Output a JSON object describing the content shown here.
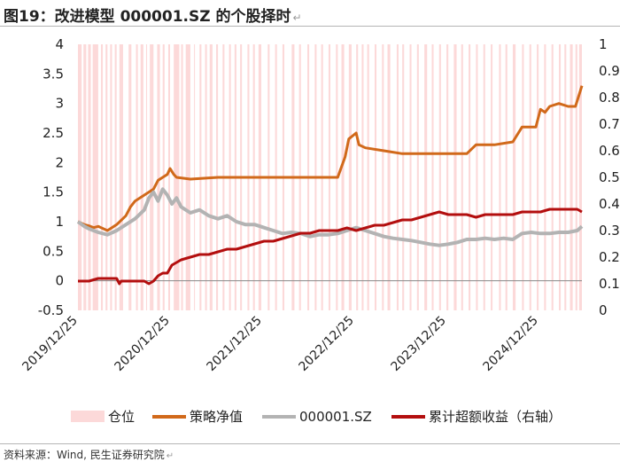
{
  "title": "图19：改进模型 000001.SZ 的个股择时",
  "source": "资料来源：Wind, 民生证券研究院",
  "chart_data": {
    "type": "line",
    "x_labels": [
      "2019/12/25",
      "2020/12/25",
      "2021/12/25",
      "2022/12/25",
      "2023/12/25",
      "2024/12/25"
    ],
    "y_left": {
      "ylim": [
        -0.5,
        4
      ],
      "ticks": [
        "4",
        "3.5",
        "3",
        "2.5",
        "2",
        "1.5",
        "1",
        "0.5",
        "0",
        "-0.5"
      ]
    },
    "y_right": {
      "ylim": [
        0,
        1
      ],
      "ticks": [
        "1",
        "0.9",
        "0.8",
        "0.7",
        "0.6",
        "0.5",
        "0.4",
        "0.3",
        "0.2",
        "0.1",
        "0"
      ]
    },
    "x_range": [
      2019.98,
      2025.45
    ],
    "legend": [
      "仓位",
      "策略净值",
      "000001.SZ",
      "累计超额收益（右轴）"
    ],
    "colors": {
      "position": "#fcd9d9",
      "strategy": "#d1691a",
      "stock": "#b3b3b3",
      "excess": "#b30e0e"
    },
    "position_periods": [
      [
        2019.98,
        2020.02
      ],
      [
        2020.04,
        2020.07
      ],
      [
        2020.09,
        2020.12
      ],
      [
        2020.14,
        2020.2
      ],
      [
        2020.23,
        2020.25
      ],
      [
        2020.28,
        2020.3
      ],
      [
        2020.33,
        2020.35
      ],
      [
        2020.38,
        2020.4
      ],
      [
        2020.43,
        2020.47
      ],
      [
        2020.53,
        2020.56
      ],
      [
        2020.61,
        2020.63
      ],
      [
        2020.66,
        2020.69
      ],
      [
        2020.72,
        2020.73
      ],
      [
        2020.76,
        2020.8
      ],
      [
        2020.84,
        2020.87
      ],
      [
        2020.9,
        2020.92
      ],
      [
        2020.96,
        2020.98
      ],
      [
        2021.02,
        2021.08
      ],
      [
        2021.1,
        2021.12
      ],
      [
        2021.15,
        2021.2
      ],
      [
        2021.24,
        2021.25
      ],
      [
        2021.3,
        2021.32
      ],
      [
        2021.36,
        2021.38
      ],
      [
        2021.41,
        2021.44
      ],
      [
        2021.48,
        2021.5
      ],
      [
        2021.55,
        2021.57
      ],
      [
        2021.62,
        2021.64
      ],
      [
        2021.68,
        2021.7
      ],
      [
        2021.74,
        2021.76
      ],
      [
        2021.82,
        2021.84
      ],
      [
        2021.88,
        2021.9
      ],
      [
        2021.94,
        2021.97
      ],
      [
        2022.04,
        2022.06
      ],
      [
        2022.12,
        2022.14
      ],
      [
        2022.2,
        2022.22
      ],
      [
        2022.3,
        2022.33
      ],
      [
        2022.38,
        2022.4
      ],
      [
        2022.47,
        2022.49
      ],
      [
        2022.55,
        2022.57
      ],
      [
        2022.62,
        2022.64
      ],
      [
        2022.7,
        2022.72
      ],
      [
        2022.78,
        2022.8
      ],
      [
        2022.84,
        2022.87
      ],
      [
        2022.92,
        2022.95
      ],
      [
        2023.0,
        2023.02
      ],
      [
        2023.06,
        2023.08
      ],
      [
        2023.12,
        2023.14
      ],
      [
        2023.2,
        2023.22
      ],
      [
        2023.28,
        2023.3
      ],
      [
        2023.34,
        2023.37
      ],
      [
        2023.44,
        2023.46
      ],
      [
        2023.5,
        2023.52
      ],
      [
        2023.58,
        2023.6
      ],
      [
        2023.66,
        2023.68
      ],
      [
        2023.74,
        2023.77
      ],
      [
        2023.82,
        2023.84
      ],
      [
        2023.9,
        2023.92
      ],
      [
        2023.98,
        2024.0
      ],
      [
        2024.06,
        2024.09
      ],
      [
        2024.14,
        2024.16
      ],
      [
        2024.22,
        2024.24
      ],
      [
        2024.3,
        2024.32
      ],
      [
        2024.38,
        2024.4
      ],
      [
        2024.46,
        2024.48
      ],
      [
        2024.55,
        2024.57
      ],
      [
        2024.62,
        2024.64
      ],
      [
        2024.7,
        2024.73
      ],
      [
        2024.8,
        2024.82
      ],
      [
        2024.88,
        2024.9
      ],
      [
        2024.96,
        2024.98
      ],
      [
        2025.04,
        2025.06
      ],
      [
        2025.12,
        2025.14
      ],
      [
        2025.2,
        2025.22
      ],
      [
        2025.26,
        2025.28
      ],
      [
        2025.32,
        2025.35
      ],
      [
        2025.38,
        2025.4
      ],
      [
        2025.42,
        2025.45
      ]
    ],
    "series": [
      {
        "name": "策略净值",
        "x": [
          2019.98,
          2020.05,
          2020.1,
          2020.15,
          2020.2,
          2020.3,
          2020.4,
          2020.5,
          2020.55,
          2020.6,
          2020.7,
          2020.8,
          2020.85,
          2020.9,
          2020.95,
          2020.98,
          2021.02,
          2021.05,
          2021.2,
          2021.5,
          2021.8,
          2022.0,
          2022.3,
          2022.6,
          2022.8,
          2022.88,
          2022.92,
          2023.0,
          2023.03,
          2023.1,
          2023.3,
          2023.5,
          2023.7,
          2023.9,
          2024.2,
          2024.3,
          2024.5,
          2024.7,
          2024.8,
          2024.95,
          2025.0,
          2025.05,
          2025.1,
          2025.2,
          2025.3,
          2025.38,
          2025.42,
          2025.45
        ],
        "y": [
          1.0,
          0.95,
          0.93,
          0.9,
          0.92,
          0.85,
          0.95,
          1.1,
          1.25,
          1.35,
          1.45,
          1.55,
          1.7,
          1.75,
          1.8,
          1.9,
          1.8,
          1.75,
          1.72,
          1.75,
          1.75,
          1.75,
          1.75,
          1.75,
          1.75,
          2.1,
          2.4,
          2.5,
          2.3,
          2.25,
          2.2,
          2.15,
          2.15,
          2.15,
          2.15,
          2.3,
          2.3,
          2.35,
          2.6,
          2.6,
          2.9,
          2.85,
          2.95,
          3.0,
          2.95,
          2.95,
          3.15,
          3.3
        ]
      },
      {
        "name": "000001.SZ",
        "x": [
          2019.98,
          2020.05,
          2020.1,
          2020.2,
          2020.3,
          2020.4,
          2020.5,
          2020.6,
          2020.7,
          2020.75,
          2020.8,
          2020.85,
          2020.9,
          2020.95,
          2021.0,
          2021.05,
          2021.1,
          2021.2,
          2021.3,
          2021.4,
          2021.5,
          2021.6,
          2021.7,
          2021.8,
          2021.9,
          2022.0,
          2022.1,
          2022.2,
          2022.3,
          2022.4,
          2022.5,
          2022.6,
          2022.7,
          2022.8,
          2022.9,
          2023.0,
          2023.1,
          2023.2,
          2023.3,
          2023.4,
          2023.5,
          2023.6,
          2023.7,
          2023.8,
          2023.9,
          2024.0,
          2024.1,
          2024.2,
          2024.3,
          2024.4,
          2024.5,
          2024.6,
          2024.7,
          2024.8,
          2024.9,
          2025.0,
          2025.1,
          2025.2,
          2025.3,
          2025.4,
          2025.45
        ],
        "y": [
          1.0,
          0.92,
          0.88,
          0.82,
          0.78,
          0.85,
          0.95,
          1.05,
          1.2,
          1.4,
          1.5,
          1.35,
          1.55,
          1.45,
          1.3,
          1.4,
          1.25,
          1.15,
          1.2,
          1.1,
          1.05,
          1.1,
          1.0,
          0.95,
          0.95,
          0.9,
          0.85,
          0.8,
          0.82,
          0.8,
          0.75,
          0.78,
          0.78,
          0.8,
          0.85,
          0.9,
          0.85,
          0.8,
          0.75,
          0.72,
          0.7,
          0.68,
          0.65,
          0.62,
          0.6,
          0.62,
          0.65,
          0.7,
          0.7,
          0.72,
          0.7,
          0.72,
          0.7,
          0.8,
          0.82,
          0.8,
          0.8,
          0.82,
          0.82,
          0.85,
          0.92
        ]
      },
      {
        "name": "累计超额收益（右轴）",
        "x": [
          2019.98,
          2020.1,
          2020.2,
          2020.3,
          2020.4,
          2020.43,
          2020.45,
          2020.55,
          2020.6,
          2020.7,
          2020.75,
          2020.8,
          2020.85,
          2020.9,
          2020.95,
          2021.0,
          2021.1,
          2021.2,
          2021.3,
          2021.4,
          2021.5,
          2021.6,
          2021.7,
          2021.8,
          2021.9,
          2022.0,
          2022.1,
          2022.2,
          2022.3,
          2022.4,
          2022.5,
          2022.6,
          2022.7,
          2022.8,
          2022.9,
          2023.0,
          2023.1,
          2023.2,
          2023.3,
          2023.4,
          2023.5,
          2023.6,
          2023.7,
          2023.8,
          2023.9,
          2024.0,
          2024.1,
          2024.2,
          2024.3,
          2024.4,
          2024.5,
          2024.6,
          2024.7,
          2024.8,
          2024.9,
          2025.0,
          2025.1,
          2025.2,
          2025.3,
          2025.4,
          2025.45
        ],
        "y": [
          0.11,
          0.11,
          0.12,
          0.12,
          0.12,
          0.1,
          0.11,
          0.11,
          0.11,
          0.11,
          0.1,
          0.11,
          0.13,
          0.14,
          0.14,
          0.17,
          0.19,
          0.2,
          0.21,
          0.21,
          0.22,
          0.23,
          0.23,
          0.24,
          0.25,
          0.26,
          0.26,
          0.27,
          0.28,
          0.29,
          0.29,
          0.3,
          0.3,
          0.3,
          0.31,
          0.3,
          0.31,
          0.32,
          0.32,
          0.33,
          0.34,
          0.34,
          0.35,
          0.36,
          0.37,
          0.36,
          0.36,
          0.36,
          0.35,
          0.36,
          0.36,
          0.36,
          0.36,
          0.37,
          0.37,
          0.37,
          0.38,
          0.38,
          0.38,
          0.38,
          0.37
        ]
      }
    ]
  }
}
